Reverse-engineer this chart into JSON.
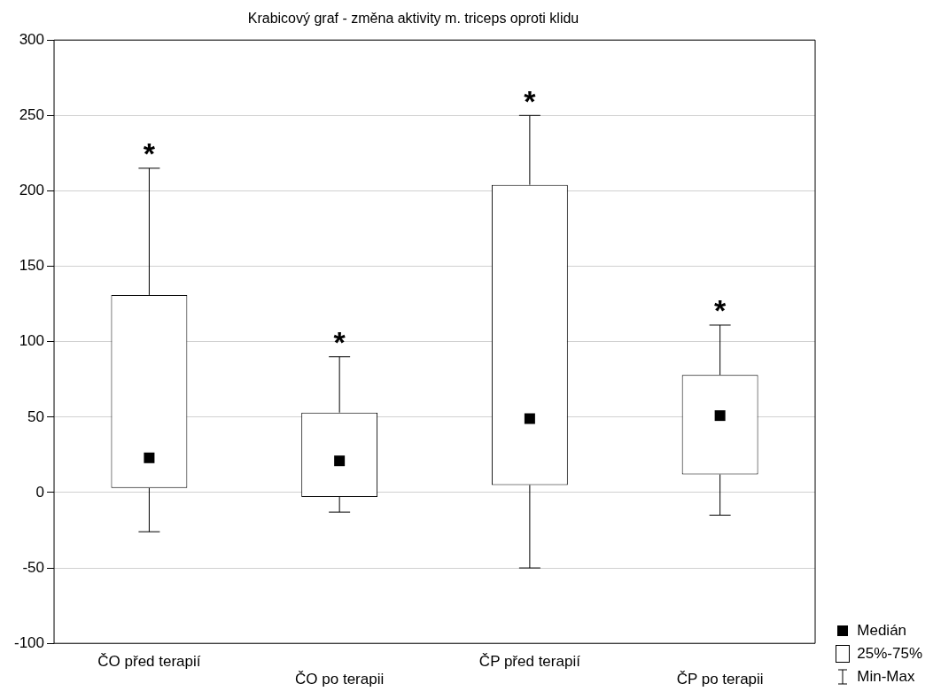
{
  "chart_data": {
    "type": "box",
    "title": "Krabicový graf - změna aktivity m. triceps oproti klidu",
    "categories": [
      "ČO před terapií",
      "ČO po terapii",
      "ČP před terapií",
      "ČP po terapii"
    ],
    "boxes": [
      {
        "low": -26,
        "q1": 3,
        "median": 23,
        "q3": 131,
        "high": 215
      },
      {
        "low": -13,
        "q1": -3,
        "median": 21,
        "q3": 53,
        "high": 90
      },
      {
        "low": -50,
        "q1": 5,
        "median": 49,
        "q3": 204,
        "high": 250
      },
      {
        "low": -15,
        "q1": 12,
        "median": 51,
        "q3": 78,
        "high": 111
      }
    ],
    "ylim": [
      -100,
      300
    ],
    "yticks": [
      -100,
      -50,
      0,
      50,
      100,
      150,
      200,
      250,
      300
    ],
    "grid": "y",
    "annotations": [
      "*",
      "*",
      "*",
      "*",
      "Medián",
      "25%-75%",
      "Min-Max"
    ]
  }
}
